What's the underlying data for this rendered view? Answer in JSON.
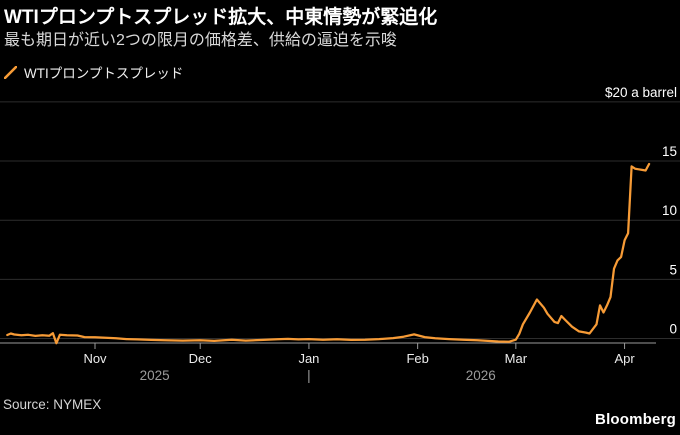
{
  "header": {
    "title": "WTIプロンプトスプレッド拡大、中東情勢が緊迫化",
    "subtitle": "最も期日が近い2つの限月の価格差、供給の逼迫を示唆"
  },
  "legend": {
    "series_label": "WTIプロンプトスプレッド",
    "marker_color": "#f79b36"
  },
  "source_label": "Source: NYMEX",
  "brand_label": "Bloomberg",
  "colors": {
    "background": "#000000",
    "line": "#f79b36",
    "gridline": "#2d2d2d",
    "axis": "#9a9a9a",
    "y_label": "#ffffff",
    "month_label": "#ececec",
    "year_label": "#9b9b9b"
  },
  "chart_data": {
    "type": "line",
    "title": "WTIプロンプトスプレッド拡大、中東情勢が緊迫化",
    "series_name": "WTIプロンプトスプレッド",
    "unit": "$ a barrel",
    "grid": "horizontal-only",
    "legend_position": "top-left",
    "y_axis": {
      "range": [
        -0.4,
        20
      ],
      "ticks": [
        {
          "value": 20,
          "label": "$20 a barrel"
        },
        {
          "value": 15,
          "label": "15"
        },
        {
          "value": 10,
          "label": "10"
        },
        {
          "value": 5,
          "label": "5"
        },
        {
          "value": 0,
          "label": "0"
        }
      ]
    },
    "x_axis": {
      "range": [
        "2025-10-07",
        "2026-04-08"
      ],
      "ticks": [
        {
          "label": "Nov",
          "date": "2025-11-01"
        },
        {
          "label": "Dec",
          "date": "2025-12-01"
        },
        {
          "label": "Jan",
          "date": "2026-01-01"
        },
        {
          "label": "Feb",
          "date": "2026-02-01"
        },
        {
          "label": "Mar",
          "date": "2026-03-01"
        },
        {
          "label": "Apr",
          "date": "2026-04-01"
        }
      ],
      "year_labels": [
        {
          "label": "2025",
          "center_date": "2025-11-18"
        },
        {
          "label": "2026",
          "center_date": "2026-02-19"
        }
      ],
      "year_divider": {
        "glyph": "|",
        "date": "2026-01-01"
      }
    },
    "points": [
      [
        "2025-10-07",
        0.3
      ],
      [
        "2025-10-08",
        0.42
      ],
      [
        "2025-10-09",
        0.34
      ],
      [
        "2025-10-11",
        0.28
      ],
      [
        "2025-10-13",
        0.31
      ],
      [
        "2025-10-15",
        0.22
      ],
      [
        "2025-10-17",
        0.28
      ],
      [
        "2025-10-19",
        0.24
      ],
      [
        "2025-10-20",
        0.45
      ],
      [
        "2025-10-21",
        -0.4
      ],
      [
        "2025-10-22",
        0.32
      ],
      [
        "2025-10-24",
        0.28
      ],
      [
        "2025-10-27",
        0.25
      ],
      [
        "2025-10-29",
        0.12
      ],
      [
        "2025-11-01",
        0.1
      ],
      [
        "2025-11-04",
        0.07
      ],
      [
        "2025-11-07",
        0.02
      ],
      [
        "2025-11-10",
        -0.05
      ],
      [
        "2025-11-13",
        -0.08
      ],
      [
        "2025-11-17",
        -0.12
      ],
      [
        "2025-11-21",
        -0.15
      ],
      [
        "2025-11-26",
        -0.18
      ],
      [
        "2025-12-01",
        -0.15
      ],
      [
        "2025-12-05",
        -0.2
      ],
      [
        "2025-12-10",
        -0.1
      ],
      [
        "2025-12-14",
        -0.18
      ],
      [
        "2025-12-19",
        -0.12
      ],
      [
        "2025-12-23",
        -0.06
      ],
      [
        "2025-12-26",
        -0.03
      ],
      [
        "2025-12-29",
        -0.08
      ],
      [
        "2026-01-01",
        -0.05
      ],
      [
        "2026-01-05",
        -0.1
      ],
      [
        "2026-01-09",
        -0.07
      ],
      [
        "2026-01-13",
        -0.12
      ],
      [
        "2026-01-17",
        -0.1
      ],
      [
        "2026-01-21",
        -0.05
      ],
      [
        "2026-01-25",
        0.03
      ],
      [
        "2026-01-28",
        0.15
      ],
      [
        "2026-01-31",
        0.35
      ],
      [
        "2026-02-03",
        0.12
      ],
      [
        "2026-02-06",
        0.02
      ],
      [
        "2026-02-10",
        -0.05
      ],
      [
        "2026-02-14",
        -0.1
      ],
      [
        "2026-02-18",
        -0.15
      ],
      [
        "2026-02-21",
        -0.2
      ],
      [
        "2026-02-24",
        -0.25
      ],
      [
        "2026-02-27",
        -0.28
      ],
      [
        "2026-03-01",
        -0.1
      ],
      [
        "2026-03-02",
        0.4
      ],
      [
        "2026-03-03",
        1.2
      ],
      [
        "2026-03-05",
        2.2
      ],
      [
        "2026-03-07",
        3.3
      ],
      [
        "2026-03-09",
        2.6
      ],
      [
        "2026-03-10",
        2.1
      ],
      [
        "2026-03-12",
        1.4
      ],
      [
        "2026-03-13",
        1.3
      ],
      [
        "2026-03-14",
        1.9
      ],
      [
        "2026-03-15",
        1.6
      ],
      [
        "2026-03-17",
        1.0
      ],
      [
        "2026-03-19",
        0.6
      ],
      [
        "2026-03-21",
        0.5
      ],
      [
        "2026-03-22",
        0.42
      ],
      [
        "2026-03-24",
        1.2
      ],
      [
        "2026-03-25",
        2.8
      ],
      [
        "2026-03-26",
        2.2
      ],
      [
        "2026-03-27",
        2.8
      ],
      [
        "2026-03-28",
        3.5
      ],
      [
        "2026-03-29",
        5.9
      ],
      [
        "2026-03-30",
        6.6
      ],
      [
        "2026-03-31",
        6.9
      ],
      [
        "2026-04-01",
        8.3
      ],
      [
        "2026-04-02",
        8.9
      ],
      [
        "2026-04-03",
        14.55
      ],
      [
        "2026-04-04",
        14.35
      ],
      [
        "2026-04-05",
        14.3
      ],
      [
        "2026-04-06",
        14.25
      ],
      [
        "2026-04-07",
        14.2
      ],
      [
        "2026-04-08",
        14.75
      ]
    ]
  }
}
